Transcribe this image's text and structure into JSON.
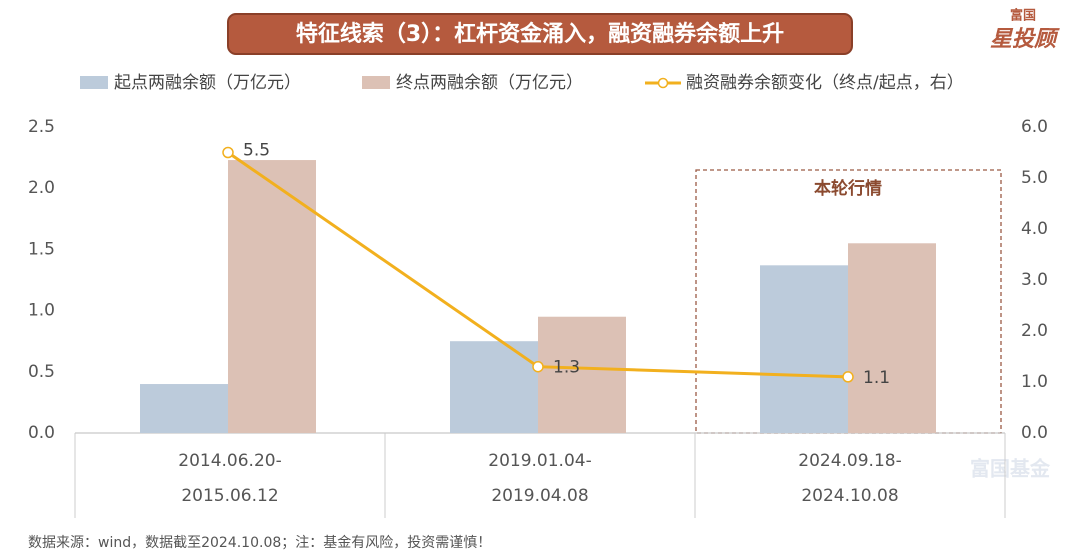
{
  "chart_data": {
    "type": "bar",
    "title": "特征线索（3）：杠杆资金涌入，融资融券余额上升",
    "categories": [
      [
        "2014.06.20-",
        "2015.06.12"
      ],
      [
        "2019.01.04-",
        "2019.04.08"
      ],
      [
        "2024.09.18-",
        "2024.10.08"
      ]
    ],
    "series": [
      {
        "name": "起点两融余额（万亿元）",
        "color": "#bccbdb",
        "values": [
          0.4,
          0.75,
          1.37
        ]
      },
      {
        "name": "终点两融余额（万亿元）",
        "color": "#dcc1b5",
        "values": [
          2.23,
          0.95,
          1.55
        ]
      },
      {
        "name": "融资融券余额变化（终点/起点，右）",
        "color": "#f2b01e",
        "values": [
          5.5,
          1.3,
          1.1
        ],
        "axis": "y2",
        "type": "line"
      }
    ],
    "ylim": [
      0,
      2.5
    ],
    "yticks": [
      {
        "value": 0,
        "label": "0.0"
      },
      0.5,
      {
        "value": 1,
        "label": "1.0"
      },
      1.5,
      {
        "value": 2,
        "label": "2.0"
      },
      2.5
    ],
    "y2lim": [
      0,
      6
    ],
    "y2ticks": [
      {
        "value": 0,
        "label": "0.0"
      },
      {
        "value": 1,
        "label": "1.0"
      },
      {
        "value": 2,
        "label": "2.0"
      },
      {
        "value": 3,
        "label": "3.0"
      },
      {
        "value": 4,
        "label": "4.0"
      },
      {
        "value": 5,
        "label": "5.0"
      },
      {
        "value": 6,
        "label": "6.0"
      }
    ],
    "annotation": "本轮行情",
    "source": "数据来源：wind，数据截至2024.10.08；注：基金有风险，投资需谨慎！"
  },
  "logo": {
    "top": "富国",
    "main": "星投顾"
  },
  "watermark": "富国基金"
}
